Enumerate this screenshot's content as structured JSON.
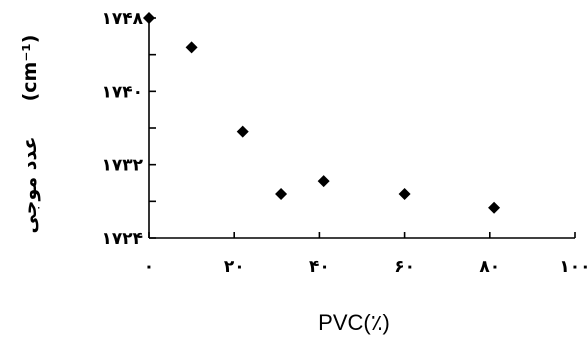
{
  "chart_data": {
    "type": "scatter",
    "xlabel": "PVC(٪)",
    "ylabel_main": "عدد موجی",
    "ylabel_unit": "(cm⁻¹)",
    "xlim": [
      0,
      100
    ],
    "ylim": [
      1724,
      1748
    ],
    "x_ticks": [
      0,
      20,
      40,
      60,
      80,
      100
    ],
    "x_tick_labels": [
      "۰",
      "۲۰",
      "۴۰",
      "۶۰",
      "۸۰",
      "۱۰۰"
    ],
    "y_ticks": [
      1724,
      1732,
      1740,
      1748
    ],
    "y_tick_labels": [
      "۱۷۲۴",
      "۱۷۳۲",
      "۱۷۴۰",
      "۱۷۴۸"
    ],
    "y_minor_ticks": [
      1728,
      1736,
      1744
    ],
    "grid": false,
    "marker": "diamond",
    "marker_color": "#000000",
    "points": [
      {
        "x": 0,
        "y": 1748.0
      },
      {
        "x": 10,
        "y": 1744.8
      },
      {
        "x": 22,
        "y": 1735.6
      },
      {
        "x": 31,
        "y": 1728.8
      },
      {
        "x": 41,
        "y": 1730.2
      },
      {
        "x": 60,
        "y": 1728.8
      },
      {
        "x": 81,
        "y": 1727.3
      }
    ]
  }
}
